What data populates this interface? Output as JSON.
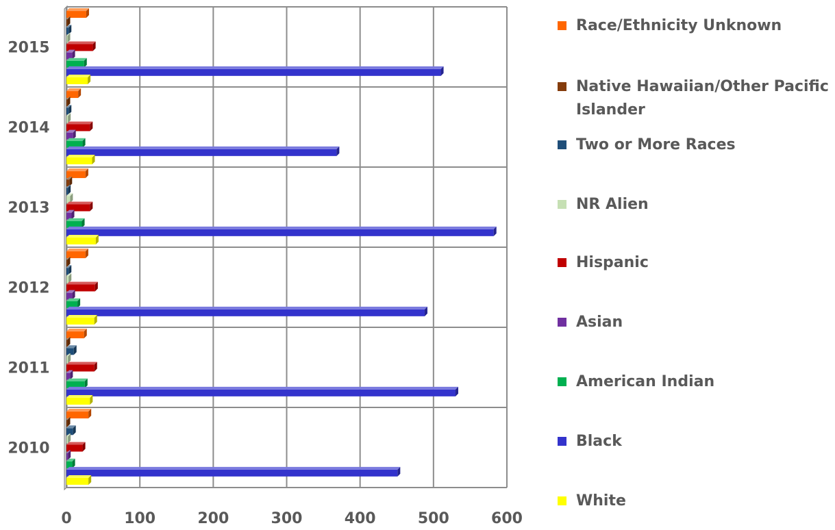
{
  "chart_data": {
    "type": "bar",
    "orientation": "horizontal",
    "style": "3d",
    "categories": [
      "2010",
      "2011",
      "2012",
      "2013",
      "2014",
      "2015"
    ],
    "xlim": [
      0,
      600
    ],
    "xticks": [
      "0",
      "100",
      "200",
      "300",
      "400",
      "500",
      "600"
    ],
    "grid": true,
    "legend_position": "right",
    "series": [
      {
        "name": "White",
        "color": "#FFFF00",
        "values": [
          30,
          32,
          38,
          40,
          35,
          29
        ]
      },
      {
        "name": "Black",
        "color": "#3333CC",
        "values": [
          451,
          530,
          488,
          582,
          368,
          510
        ]
      },
      {
        "name": "American Indian",
        "color": "#00B050",
        "values": [
          8,
          25,
          15,
          21,
          22,
          24
        ]
      },
      {
        "name": "Asian",
        "color": "#7030A0",
        "values": [
          2,
          5,
          8,
          7,
          9,
          8
        ]
      },
      {
        "name": "Hispanic",
        "color": "#C00000",
        "values": [
          22,
          38,
          39,
          32,
          32,
          36
        ]
      },
      {
        "name": "NR Alien",
        "color": "#C6E0B4",
        "values": [
          2,
          2,
          3,
          5,
          2,
          1
        ]
      },
      {
        "name": "Two or More Races",
        "color": "#1F4E79",
        "values": [
          9,
          10,
          3,
          2,
          3,
          3
        ]
      },
      {
        "name": "Native Hawaiian/Other Pacific Islander",
        "color": "#843C0C",
        "values": [
          1,
          1,
          1,
          4,
          1,
          1
        ]
      },
      {
        "name": "Race/Ethnicity Unknown",
        "color": "#FF6600",
        "values": [
          30,
          24,
          26,
          26,
          16,
          27
        ]
      }
    ]
  }
}
